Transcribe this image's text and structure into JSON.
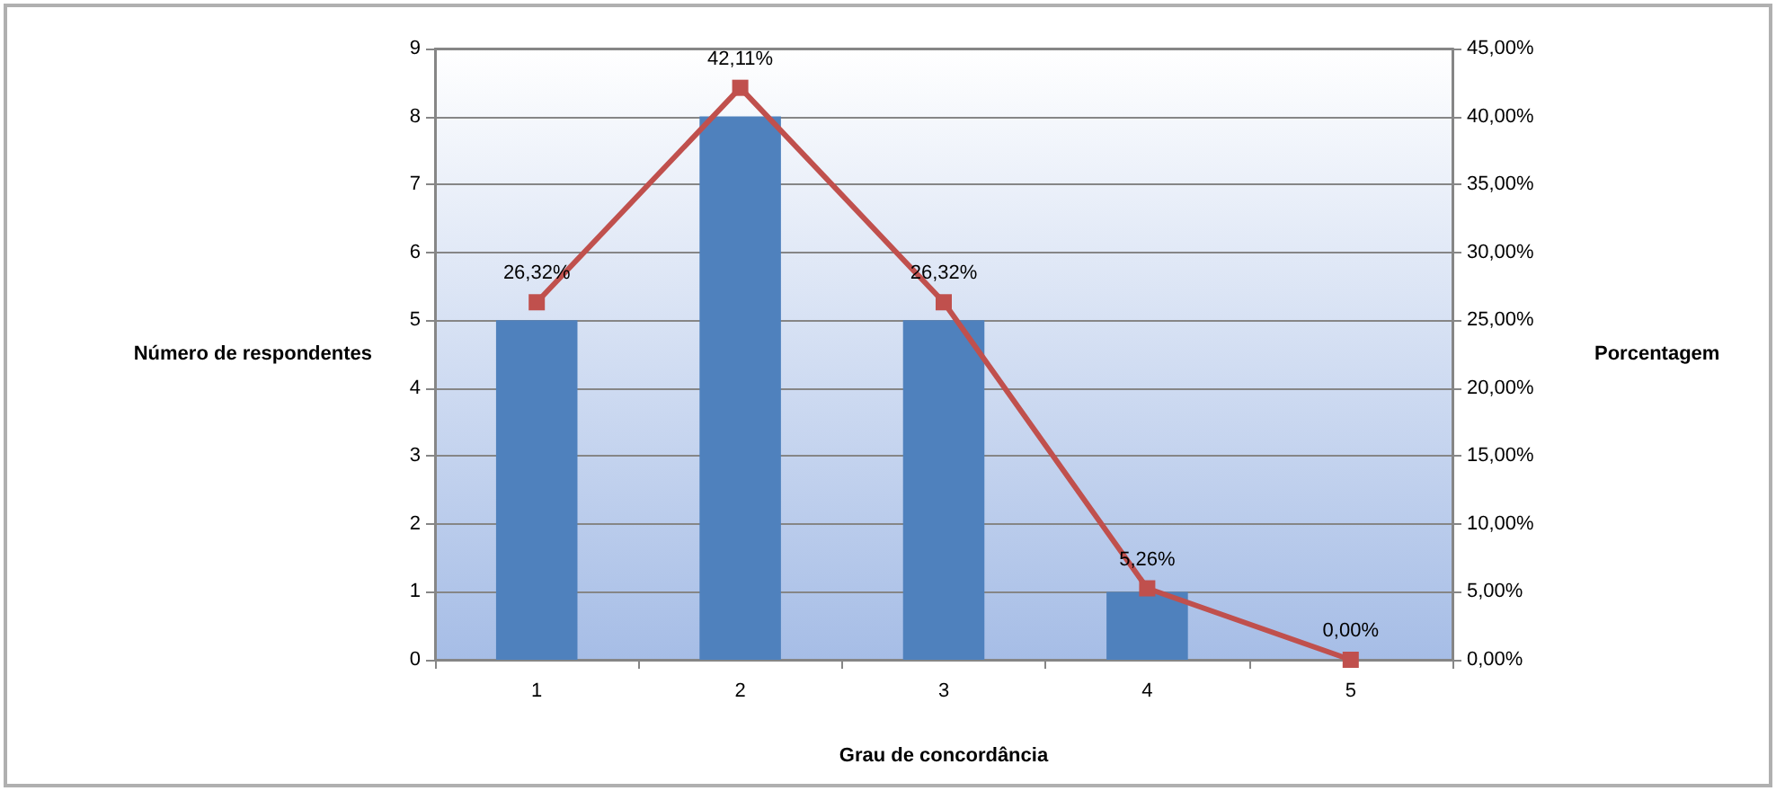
{
  "chart_data": {
    "type": "bar",
    "xlabel": "Grau de concordância",
    "ylabel": "Número de respondentes",
    "y2label": "Porcentagem",
    "categories": [
      "1",
      "2",
      "3",
      "4",
      "5"
    ],
    "series": [
      {
        "color": "#4f81bd",
        "values": [
          5,
          8,
          5,
          1,
          0
        ]
      },
      {
        "type": "line",
        "axis": "y2",
        "color": "#c0504d",
        "marker": "square",
        "line_style": "solid",
        "values": [
          26.32,
          42.11,
          26.32,
          5.26,
          0.0
        ],
        "value_labels": [
          "26,32%",
          "42,11%",
          "26,32%",
          "5,26%",
          "0,00%"
        ]
      }
    ],
    "ylim": [
      0,
      9
    ],
    "yticks": [
      0,
      1,
      2,
      3,
      4,
      5,
      6,
      7,
      8,
      9
    ],
    "y2lim": [
      0,
      45
    ],
    "y2ticks": [
      {
        "value": 0,
        "label": "0,00%"
      },
      {
        "value": 5,
        "label": "5,00%"
      },
      {
        "value": 10,
        "label": "10,00%"
      },
      {
        "value": 15,
        "label": "15,00%"
      },
      {
        "value": 20,
        "label": "20,00%"
      },
      {
        "value": 25,
        "label": "25,00%"
      },
      {
        "value": 30,
        "label": "30,00%"
      },
      {
        "value": 35,
        "label": "35,00%"
      },
      {
        "value": 40,
        "label": "40,00%"
      },
      {
        "value": 45,
        "label": "45,00%"
      }
    ],
    "grid": "y"
  }
}
